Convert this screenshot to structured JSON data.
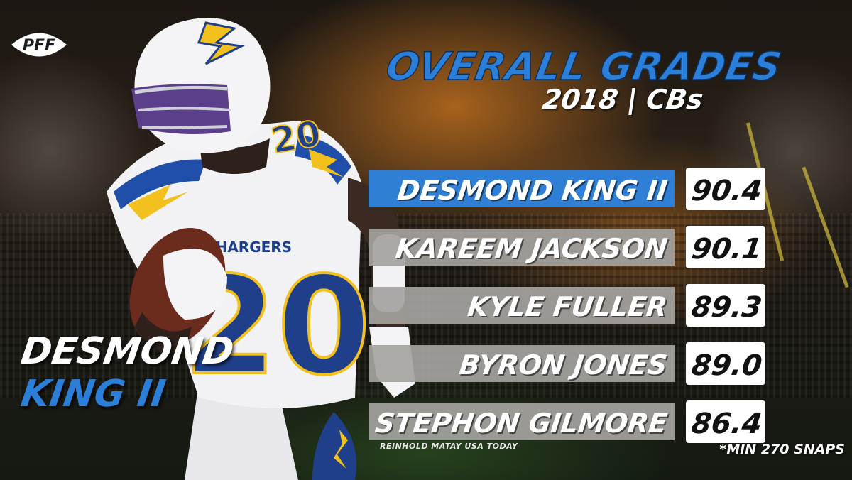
{
  "brand": {
    "logo_text": "PFF"
  },
  "header": {
    "title": "OVERALL GRADES",
    "subtitle": "2018 | CBs"
  },
  "featured_player": {
    "line1": "DESMOND",
    "line2": "KING II",
    "jersey_number": "20",
    "team_text": "CHARGERS"
  },
  "chart_data": {
    "type": "bar",
    "orientation": "horizontal",
    "title": "OVERALL GRADES",
    "subtitle": "2018 | CBs",
    "categories": [
      "DESMOND KING II",
      "KAREEM JACKSON",
      "KYLE FULLER",
      "BYRON JONES",
      "STEPHON GILMORE"
    ],
    "values": [
      "90.4",
      "90.1",
      "89.3",
      "89.0",
      "86.4"
    ],
    "highlighted_category": "DESMOND KING II",
    "xlabel": "",
    "ylabel": "",
    "grid": false,
    "legend": "none"
  },
  "footer": {
    "photo_credit": "REINHOLD MATAY USA TODAY",
    "footnote": "*MIN 270 SNAPS"
  },
  "colors": {
    "accent_blue": "#2b7fd8",
    "highlight_bar": "#2f7fd6",
    "default_bar": "#a5a3a0",
    "value_box": "#ffffff"
  }
}
